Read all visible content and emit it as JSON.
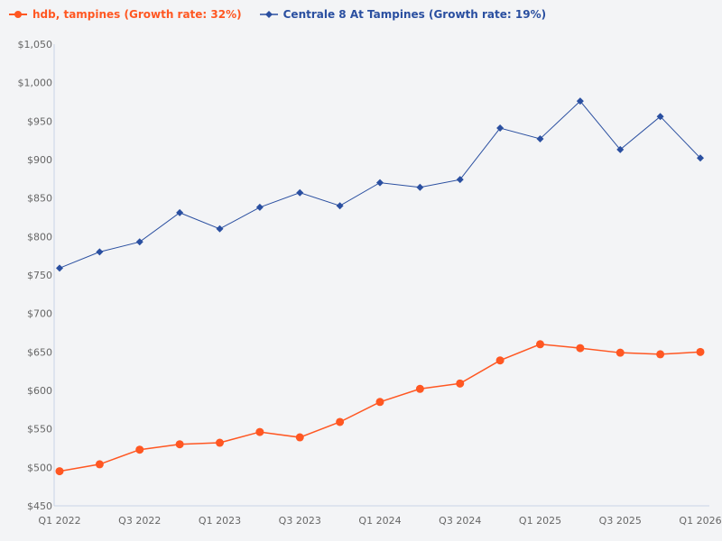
{
  "chart_data": {
    "type": "line",
    "title": "",
    "xlabel": "",
    "ylabel": "",
    "ylim": [
      450,
      1050
    ],
    "yticks": [
      "$450",
      "$500",
      "$550",
      "$600",
      "$650",
      "$700",
      "$750",
      "$800",
      "$850",
      "$900",
      "$950",
      "$1,000",
      "$1,050"
    ],
    "ytick_values": [
      450,
      500,
      550,
      600,
      650,
      700,
      750,
      800,
      850,
      900,
      950,
      1000,
      1050
    ],
    "categories": [
      "Q1 2022",
      "Q2 2022",
      "Q3 2022",
      "Q4 2022",
      "Q1 2023",
      "Q2 2023",
      "Q3 2023",
      "Q4 2023",
      "Q1 2024",
      "Q2 2024",
      "Q3 2024",
      "Q4 2024",
      "Q1 2025",
      "Q2 2025",
      "Q3 2025",
      "Q4 2025",
      "Q1 2026"
    ],
    "xtick_labels_shown": [
      "Q1 2022",
      "Q3 2022",
      "Q1 2023",
      "Q3 2023",
      "Q1 2024",
      "Q3 2024",
      "Q1 2025",
      "Q3 2025",
      "Q1 2026"
    ],
    "grid": false,
    "legend_position": "top-left",
    "series": [
      {
        "name": "hdb, tampines (Growth rate: 32%)",
        "color": "#ff5722",
        "marker": "circle",
        "values": [
          495,
          504,
          523,
          530,
          532,
          546,
          539,
          559,
          585,
          602,
          609,
          639,
          660,
          655,
          649,
          647,
          650
        ]
      },
      {
        "name": "Centrale 8 At Tampines (Growth rate: 19%)",
        "color": "#2a4fa0",
        "marker": "diamond",
        "values": [
          759,
          780,
          793,
          831,
          810,
          838,
          857,
          840,
          870,
          864,
          874,
          941,
          927,
          976,
          913,
          956,
          902
        ]
      }
    ]
  }
}
